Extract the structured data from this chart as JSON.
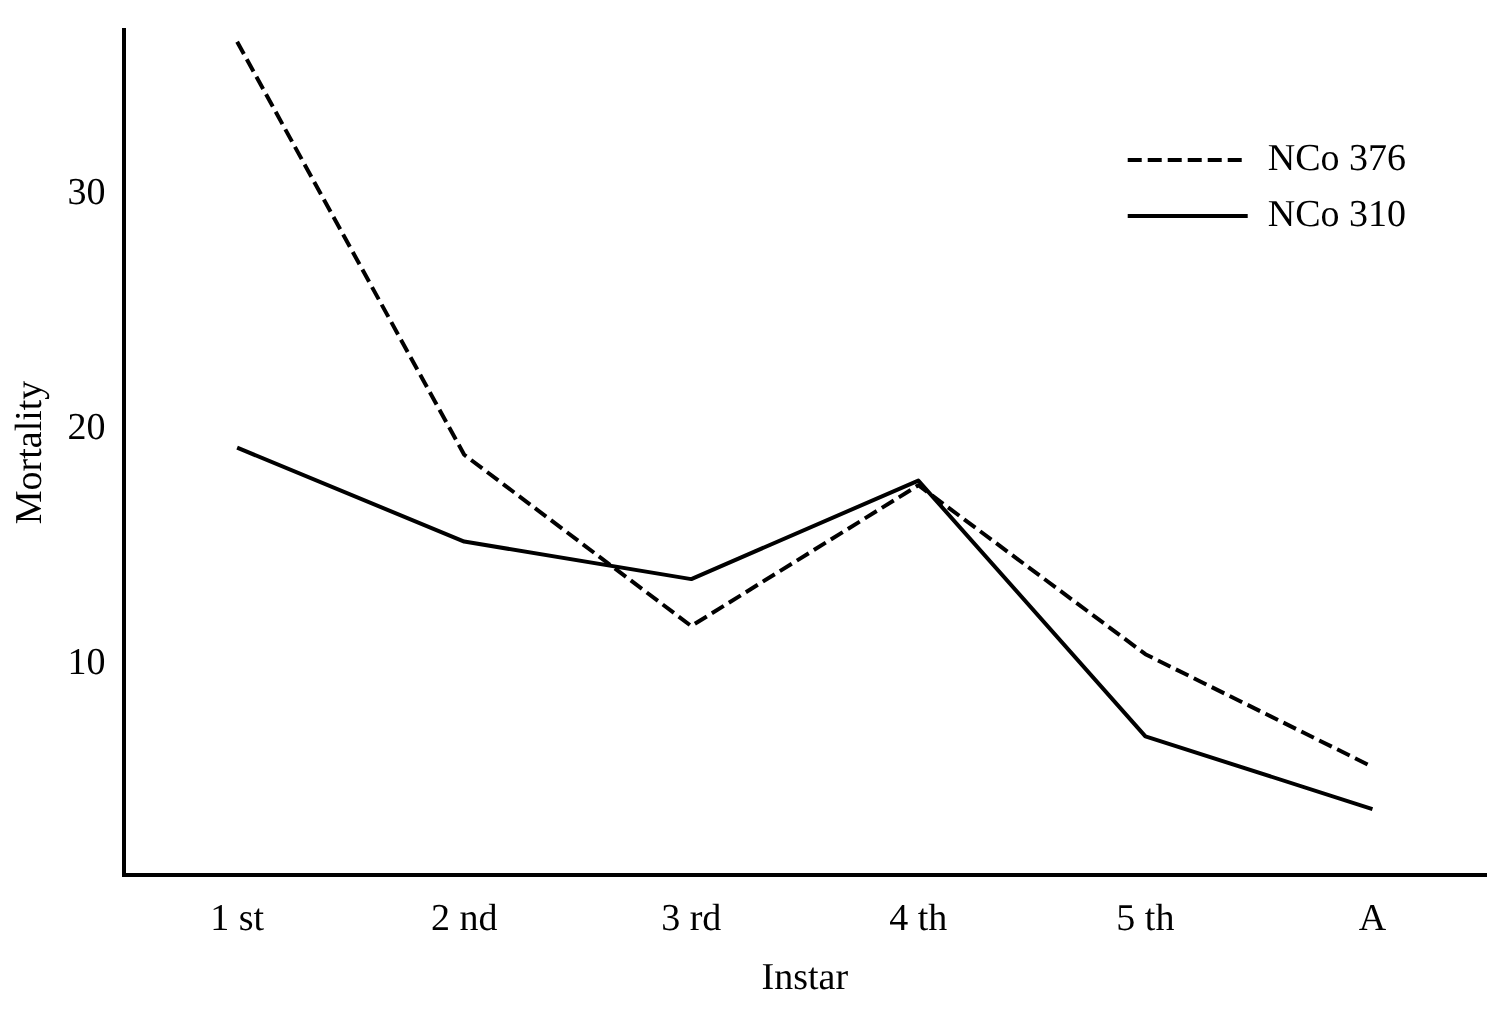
{
  "chart_data": {
    "type": "line",
    "xlabel": "Instar",
    "ylabel": "Mortality",
    "categories": [
      "1 st",
      "2 nd",
      "3 rd",
      "4 th",
      "5 th",
      "A"
    ],
    "series": [
      {
        "name": "NCo 376",
        "color": "#000000",
        "line_style": "dashed",
        "values": [
          36.5,
          18.9,
          11.6,
          17.6,
          10.4,
          5.6
        ]
      },
      {
        "name": "NCo 310",
        "color": "#000000",
        "line_style": "solid",
        "values": [
          19.2,
          15.2,
          13.6,
          17.8,
          6.9,
          3.8
        ]
      }
    ],
    "ylim": [
      1,
      37
    ],
    "yticks": [
      10,
      20,
      30
    ],
    "grid": false,
    "legend": "top right",
    "marker": "none"
  }
}
